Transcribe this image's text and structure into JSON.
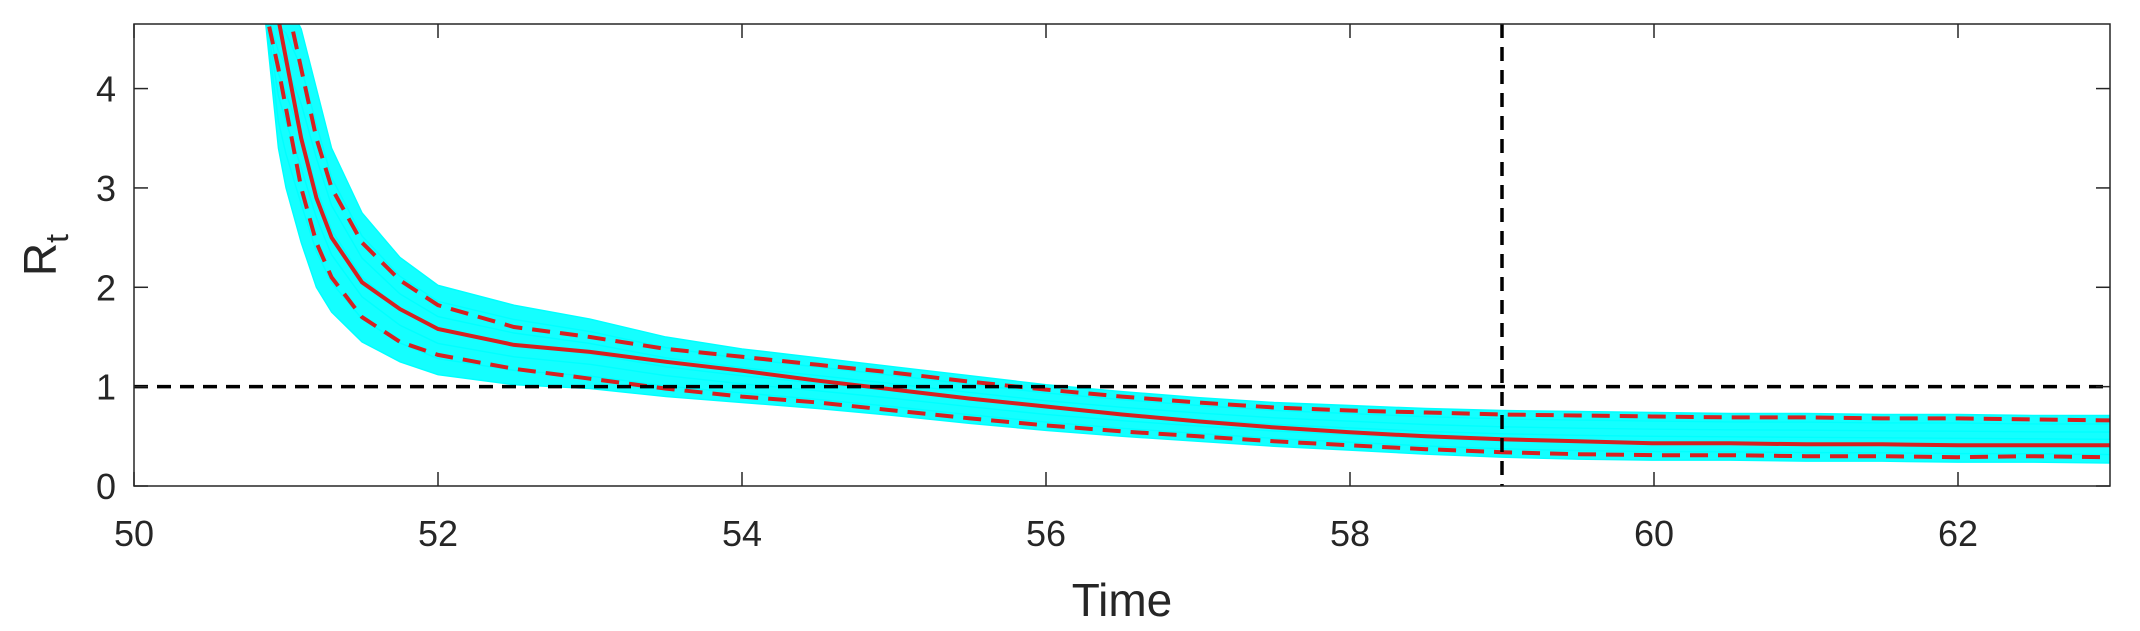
{
  "chart_data": {
    "type": "line",
    "title": "",
    "xlabel": "Time",
    "ylabel": "R",
    "ylabel_subscript": "t",
    "xlim": [
      50,
      63
    ],
    "ylim": [
      0,
      4.65
    ],
    "xticks": [
      50,
      52,
      54,
      56,
      58,
      60,
      62
    ],
    "yticks": [
      0,
      1,
      2,
      3,
      4
    ],
    "grid": false,
    "colors": {
      "ensemble": "#00ffff",
      "median": "#d62020",
      "bounds": "#d62020",
      "reference": "#000000",
      "axis": "#262626"
    },
    "x": [
      50.85,
      50.95,
      51.0,
      51.1,
      51.2,
      51.3,
      51.5,
      51.75,
      52.0,
      52.5,
      53.0,
      53.5,
      54.0,
      54.5,
      55.0,
      55.5,
      56.0,
      56.5,
      57.0,
      57.5,
      58.0,
      58.5,
      59.0,
      59.5,
      60.0,
      60.5,
      61.0,
      61.5,
      62.0,
      62.5,
      63.0
    ],
    "series": [
      {
        "values": [
          4.9,
          4.7,
          4.3,
          3.5,
          2.9,
          2.5,
          2.05,
          1.78,
          1.58,
          1.42,
          1.35,
          1.25,
          1.16,
          1.06,
          0.97,
          0.88,
          0.8,
          0.72,
          0.65,
          0.59,
          0.54,
          0.5,
          0.47,
          0.45,
          0.43,
          0.43,
          0.42,
          0.42,
          0.41,
          0.41,
          0.41
        ]
      },
      {
        "values": [
          4.9,
          4.9,
          4.9,
          4.2,
          3.5,
          3.0,
          2.45,
          2.07,
          1.82,
          1.6,
          1.5,
          1.38,
          1.3,
          1.22,
          1.14,
          1.05,
          0.97,
          0.9,
          0.84,
          0.79,
          0.76,
          0.74,
          0.72,
          0.71,
          0.7,
          0.69,
          0.69,
          0.68,
          0.68,
          0.67,
          0.66
        ]
      },
      {
        "values": [
          4.9,
          4.2,
          3.8,
          3.0,
          2.45,
          2.1,
          1.7,
          1.45,
          1.32,
          1.18,
          1.08,
          0.98,
          0.9,
          0.84,
          0.76,
          0.68,
          0.61,
          0.55,
          0.5,
          0.45,
          0.41,
          0.37,
          0.34,
          0.32,
          0.31,
          0.31,
          0.3,
          0.3,
          0.29,
          0.3,
          0.29
        ]
      }
    ],
    "ensemble_envelope": {
      "upper": [
        4.9,
        4.9,
        4.9,
        4.6,
        4.0,
        3.4,
        2.75,
        2.3,
        2.02,
        1.82,
        1.68,
        1.5,
        1.38,
        1.29,
        1.2,
        1.11,
        1.02,
        0.95,
        0.89,
        0.84,
        0.81,
        0.78,
        0.76,
        0.75,
        0.74,
        0.73,
        0.73,
        0.72,
        0.72,
        0.71,
        0.71
      ],
      "lower": [
        4.9,
        3.4,
        3.0,
        2.45,
        2.0,
        1.75,
        1.45,
        1.25,
        1.12,
        1.02,
        0.98,
        0.9,
        0.84,
        0.78,
        0.71,
        0.63,
        0.56,
        0.5,
        0.45,
        0.4,
        0.36,
        0.32,
        0.29,
        0.27,
        0.26,
        0.26,
        0.25,
        0.25,
        0.24,
        0.24,
        0.23
      ]
    },
    "reference_lines": [
      {
        "orientation": "horizontal",
        "value": 1
      },
      {
        "orientation": "vertical",
        "value": 59
      }
    ]
  }
}
